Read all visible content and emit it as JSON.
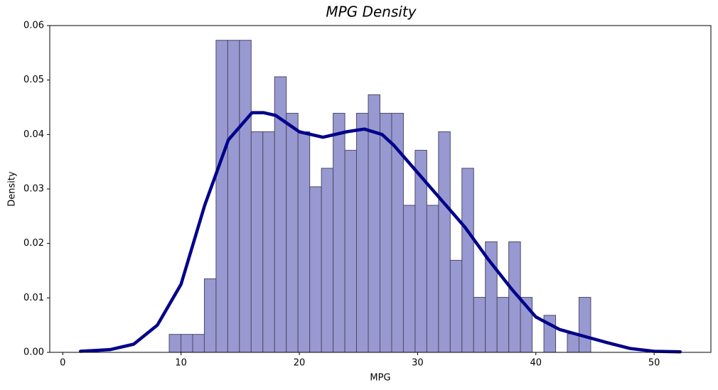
{
  "chart_data": {
    "type": "histogram",
    "title": "MPG Density",
    "xlabel": "MPG",
    "ylabel": "Density",
    "bins": [
      9,
      9.99,
      10.98,
      11.97,
      12.96,
      13.95,
      14.94,
      15.93,
      16.92,
      17.91,
      18.9,
      19.89,
      20.88,
      21.87,
      22.86,
      23.85,
      24.84,
      25.83,
      26.82,
      27.81,
      28.8,
      29.79,
      30.78,
      31.77,
      32.76,
      33.75,
      34.74,
      35.73,
      36.72,
      37.71,
      38.7,
      39.69,
      40.68,
      41.67,
      42.66,
      43.65,
      44.64
    ],
    "values": [
      0.0033,
      0.0033,
      0.0033,
      0.0135,
      0.0573,
      0.0573,
      0.0573,
      0.0405,
      0.0405,
      0.0506,
      0.0439,
      0.0405,
      0.0304,
      0.0338,
      0.0439,
      0.0371,
      0.0439,
      0.0473,
      0.0439,
      0.0439,
      0.027,
      0.0371,
      0.027,
      0.0405,
      0.0169,
      0.0338,
      0.0101,
      0.0203,
      0.0101,
      0.0203,
      0.0101,
      0,
      0.0068,
      0,
      0.0034,
      0.0101
    ],
    "color": "#9999d1",
    "edgecolor": "#4a4a6a",
    "kde": {
      "type": "line",
      "x": [
        1.5,
        4,
        6,
        8,
        10,
        12,
        14,
        16,
        17,
        18,
        20,
        22,
        24,
        25.5,
        27,
        28,
        30,
        32,
        34,
        36,
        38,
        40,
        42,
        44,
        46,
        48,
        50,
        52.2
      ],
      "values": [
        0.0002,
        0.0005,
        0.0015,
        0.005,
        0.0125,
        0.027,
        0.039,
        0.044,
        0.044,
        0.0435,
        0.0405,
        0.0395,
        0.0405,
        0.041,
        0.04,
        0.038,
        0.033,
        0.028,
        0.023,
        0.017,
        0.0115,
        0.0065,
        0.0042,
        0.003,
        0.0018,
        0.0007,
        0.0002,
        0.0001
      ],
      "color": "#00008b"
    },
    "xlim": [
      -1.1,
      54.8
    ],
    "ylim": [
      0,
      0.06
    ],
    "xticks": [
      0,
      10,
      20,
      30,
      40,
      50
    ],
    "yticks": [
      {
        "value": 0,
        "label": "0.00"
      },
      0.01,
      0.02,
      0.03,
      0.04,
      0.05,
      0.06
    ]
  }
}
